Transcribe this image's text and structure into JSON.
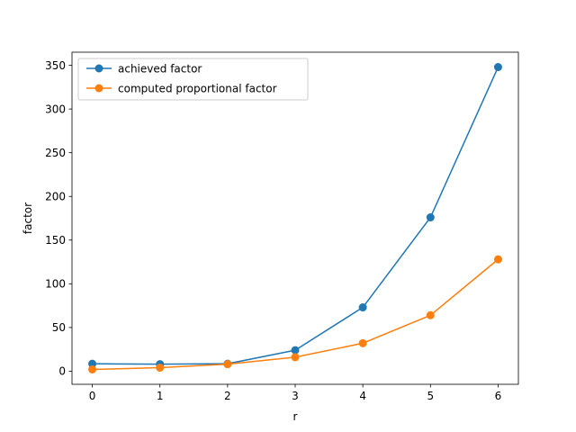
{
  "chart_data": {
    "type": "line",
    "title": "",
    "xlabel": "r",
    "ylabel": "factor",
    "x": [
      0,
      1,
      2,
      3,
      4,
      5,
      6
    ],
    "xlim": [
      -0.3,
      6.3
    ],
    "ylim": [
      -15,
      365
    ],
    "xticks": [
      0,
      1,
      2,
      3,
      4,
      5,
      6
    ],
    "yticks": [
      0,
      50,
      100,
      150,
      200,
      250,
      300,
      350
    ],
    "grid": false,
    "legend_position": "top-left",
    "series": [
      {
        "name": "achieved factor",
        "color": "#1f77b4",
        "values": [
          8.5,
          8.0,
          8.5,
          24,
          73,
          176,
          348
        ]
      },
      {
        "name": "computed proportional factor",
        "color": "#ff7f0e",
        "values": [
          2,
          4,
          8,
          16,
          32,
          64,
          128
        ]
      }
    ]
  }
}
